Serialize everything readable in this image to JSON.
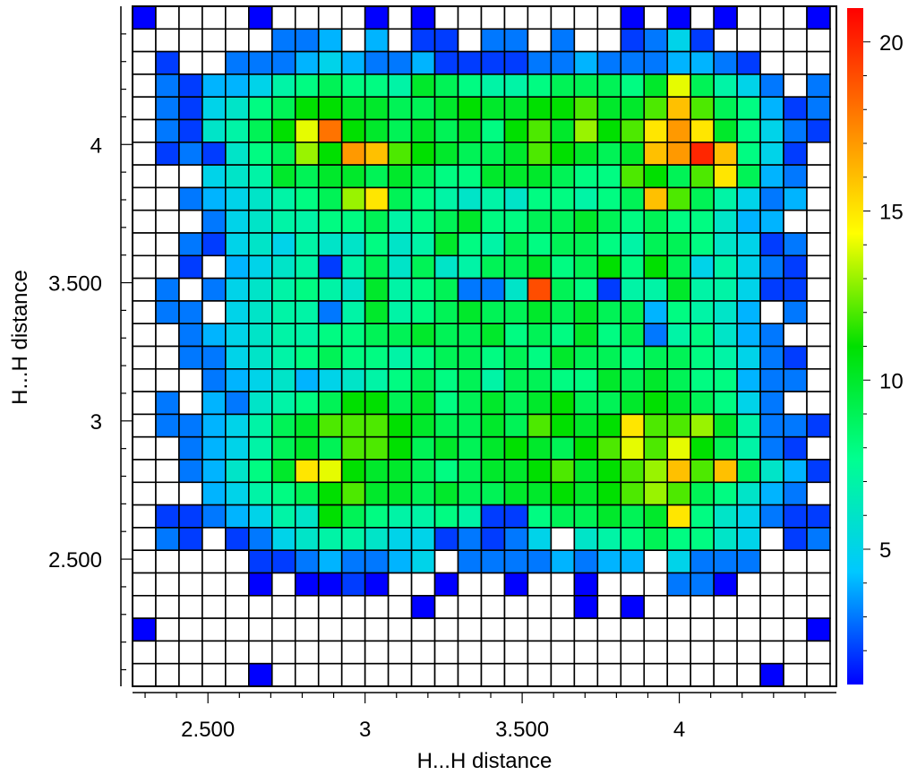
{
  "chart_data": {
    "type": "heatmap",
    "title": "",
    "xlabel": "H...H distance",
    "ylabel": "H...H distance",
    "x_ticks": [
      {
        "value": 2.5,
        "label": "2.500"
      },
      {
        "value": 3.0,
        "label": "3"
      },
      {
        "value": 3.5,
        "label": "3.500"
      },
      {
        "value": 4.0,
        "label": "4"
      }
    ],
    "y_ticks": [
      {
        "value": 2.5,
        "label": "2.500"
      },
      {
        "value": 3.0,
        "label": "3"
      },
      {
        "value": 3.5,
        "label": "3.500"
      },
      {
        "value": 4.0,
        "label": "4"
      }
    ],
    "xlim": [
      2.26,
      4.5
    ],
    "ylim": [
      2.04,
      4.5
    ],
    "colorbar": {
      "min": 1,
      "max": 21,
      "ticks": [
        {
          "value": 5,
          "label": "5"
        },
        {
          "value": 10,
          "label": "10"
        },
        {
          "value": 15,
          "label": "15"
        },
        {
          "value": 20,
          "label": "20"
        }
      ],
      "colormap": [
        "#0000ff",
        "#00c8ff",
        "#00ff90",
        "#00e000",
        "#ffff00",
        "#ff8000",
        "#ff0000"
      ]
    },
    "empty_color": "#ffffff",
    "x_bins": {
      "start": 2.26,
      "width": 0.074,
      "count": 30
    },
    "y_bins": {
      "start": 2.04,
      "width": 0.082,
      "count": 30
    },
    "grid_rows_top_to_bottom": [
      [
        1,
        0,
        0,
        0,
        0,
        1,
        0,
        0,
        0,
        0,
        1,
        0,
        1,
        0,
        0,
        0,
        0,
        0,
        0,
        0,
        0,
        1,
        0,
        1,
        0,
        1,
        0,
        0,
        0,
        1
      ],
      [
        0,
        0,
        0,
        0,
        0,
        0,
        3,
        3,
        4,
        0,
        4,
        0,
        2,
        2,
        0,
        3,
        3,
        0,
        3,
        0,
        0,
        2,
        3,
        5,
        2,
        0,
        0,
        0,
        0,
        0
      ],
      [
        0,
        2,
        0,
        0,
        3,
        3,
        3,
        4,
        5,
        4,
        3,
        3,
        4,
        2,
        2,
        2,
        2,
        3,
        3,
        4,
        3,
        3,
        3,
        4,
        4,
        3,
        2,
        0,
        0,
        0
      ],
      [
        0,
        3,
        2,
        4,
        4,
        5,
        7,
        8,
        9,
        8,
        8,
        7,
        10,
        9,
        8,
        7,
        7,
        8,
        9,
        9,
        9,
        8,
        10,
        14,
        9,
        7,
        5,
        3,
        0,
        3
      ],
      [
        0,
        3,
        2,
        5,
        6,
        8,
        9,
        11,
        11,
        10,
        10,
        9,
        9,
        10,
        11,
        10,
        10,
        11,
        11,
        12,
        10,
        10,
        12,
        16,
        12,
        9,
        8,
        4,
        2,
        3
      ],
      [
        0,
        3,
        2,
        6,
        7,
        9,
        11,
        14,
        18,
        11,
        10,
        9,
        10,
        9,
        10,
        8,
        11,
        12,
        10,
        13,
        11,
        12,
        15,
        17,
        15,
        10,
        8,
        5,
        3,
        2
      ],
      [
        0,
        2,
        3,
        2,
        6,
        8,
        9,
        13,
        11,
        17,
        16,
        12,
        11,
        10,
        9,
        9,
        10,
        12,
        11,
        10,
        9,
        10,
        16,
        17,
        20,
        16,
        8,
        5,
        2,
        0
      ],
      [
        0,
        0,
        0,
        5,
        6,
        7,
        10,
        9,
        10,
        10,
        9,
        10,
        9,
        8,
        8,
        10,
        10,
        10,
        9,
        8,
        8,
        12,
        11,
        9,
        12,
        15,
        9,
        4,
        3,
        0
      ],
      [
        0,
        0,
        3,
        4,
        5,
        6,
        7,
        8,
        9,
        13,
        15,
        9,
        8,
        7,
        6,
        7,
        6,
        8,
        8,
        7,
        8,
        9,
        16,
        12,
        9,
        7,
        5,
        3,
        4,
        0
      ],
      [
        0,
        0,
        0,
        3,
        5,
        6,
        7,
        7,
        8,
        8,
        9,
        7,
        8,
        9,
        10,
        8,
        8,
        9,
        9,
        10,
        9,
        8,
        9,
        8,
        8,
        6,
        4,
        4,
        0,
        0
      ],
      [
        0,
        0,
        3,
        2,
        5,
        6,
        5,
        7,
        6,
        6,
        8,
        6,
        7,
        10,
        8,
        7,
        9,
        8,
        9,
        9,
        8,
        7,
        9,
        9,
        8,
        6,
        5,
        2,
        3,
        0
      ],
      [
        0,
        0,
        2,
        0,
        4,
        5,
        6,
        7,
        2,
        7,
        9,
        6,
        9,
        6,
        7,
        9,
        9,
        10,
        8,
        9,
        11,
        8,
        11,
        9,
        5,
        7,
        5,
        3,
        2,
        0
      ],
      [
        0,
        3,
        0,
        3,
        5,
        6,
        7,
        8,
        7,
        6,
        10,
        7,
        8,
        9,
        3,
        3,
        6,
        19,
        9,
        8,
        2,
        7,
        7,
        10,
        7,
        7,
        5,
        2,
        2,
        0
      ],
      [
        0,
        3,
        3,
        0,
        5,
        6,
        7,
        7,
        3,
        7,
        10,
        7,
        8,
        9,
        10,
        9,
        9,
        10,
        9,
        10,
        9,
        9,
        4,
        8,
        7,
        6,
        4,
        0,
        3,
        0
      ],
      [
        0,
        0,
        3,
        4,
        5,
        6,
        7,
        7,
        8,
        8,
        9,
        9,
        10,
        9,
        9,
        10,
        8,
        9,
        8,
        10,
        8,
        9,
        3,
        7,
        8,
        6,
        4,
        3,
        0,
        0
      ],
      [
        0,
        0,
        3,
        3,
        5,
        6,
        7,
        8,
        9,
        8,
        8,
        7,
        8,
        9,
        9,
        8,
        9,
        8,
        10,
        9,
        9,
        8,
        9,
        9,
        8,
        7,
        5,
        3,
        2,
        0
      ],
      [
        0,
        0,
        0,
        3,
        4,
        5,
        6,
        4,
        5,
        6,
        7,
        8,
        9,
        8,
        9,
        7,
        9,
        9,
        8,
        8,
        10,
        9,
        10,
        9,
        8,
        8,
        4,
        3,
        3,
        0
      ],
      [
        0,
        3,
        0,
        4,
        3,
        6,
        7,
        8,
        9,
        11,
        11,
        9,
        10,
        8,
        9,
        10,
        9,
        10,
        11,
        9,
        9,
        10,
        11,
        10,
        9,
        8,
        5,
        3,
        0,
        0
      ],
      [
        0,
        3,
        3,
        4,
        5,
        7,
        9,
        10,
        12,
        12,
        12,
        11,
        10,
        9,
        9,
        10,
        9,
        12,
        11,
        10,
        11,
        15,
        12,
        12,
        13,
        10,
        7,
        3,
        3,
        2
      ],
      [
        0,
        0,
        3,
        4,
        5,
        7,
        9,
        10,
        9,
        12,
        12,
        11,
        9,
        10,
        9,
        10,
        11,
        10,
        9,
        11,
        12,
        14,
        12,
        14,
        11,
        9,
        7,
        3,
        2,
        0
      ],
      [
        0,
        0,
        3,
        4,
        6,
        8,
        10,
        15,
        14,
        11,
        10,
        10,
        9,
        8,
        9,
        10,
        10,
        11,
        12,
        10,
        11,
        12,
        13,
        16,
        12,
        16,
        9,
        6,
        4,
        2
      ],
      [
        0,
        0,
        0,
        4,
        5,
        7,
        8,
        9,
        11,
        12,
        10,
        10,
        9,
        10,
        9,
        9,
        10,
        10,
        11,
        10,
        11,
        12,
        13,
        12,
        9,
        8,
        6,
        4,
        3,
        0
      ],
      [
        0,
        2,
        2,
        3,
        4,
        5,
        7,
        6,
        11,
        9,
        8,
        7,
        7,
        8,
        7,
        2,
        2,
        8,
        9,
        9,
        10,
        9,
        10,
        15,
        8,
        6,
        5,
        3,
        2,
        2
      ],
      [
        0,
        3,
        2,
        0,
        2,
        3,
        5,
        6,
        7,
        7,
        6,
        5,
        5,
        2,
        3,
        2,
        3,
        5,
        0,
        6,
        7,
        8,
        9,
        8,
        8,
        6,
        5,
        0,
        2,
        3
      ],
      [
        0,
        0,
        0,
        0,
        0,
        2,
        2,
        3,
        4,
        3,
        3,
        4,
        5,
        0,
        3,
        3,
        3,
        3,
        4,
        3,
        4,
        4,
        0,
        5,
        3,
        3,
        3,
        0,
        0,
        0
      ],
      [
        0,
        0,
        0,
        0,
        0,
        1,
        0,
        1,
        1,
        2,
        1,
        0,
        0,
        1,
        0,
        0,
        1,
        0,
        0,
        1,
        0,
        0,
        0,
        3,
        3,
        1,
        0,
        0,
        0,
        0
      ],
      [
        0,
        0,
        0,
        0,
        0,
        0,
        0,
        0,
        0,
        0,
        0,
        0,
        1,
        0,
        0,
        0,
        0,
        0,
        0,
        1,
        0,
        1,
        0,
        0,
        0,
        0,
        0,
        0,
        0,
        0
      ],
      [
        1,
        0,
        0,
        0,
        0,
        0,
        0,
        0,
        0,
        0,
        0,
        0,
        0,
        0,
        0,
        0,
        0,
        0,
        0,
        0,
        0,
        0,
        0,
        0,
        0,
        0,
        0,
        0,
        0,
        1
      ],
      [
        0,
        0,
        0,
        0,
        0,
        0,
        0,
        0,
        0,
        0,
        0,
        0,
        0,
        0,
        0,
        0,
        0,
        0,
        0,
        0,
        0,
        0,
        0,
        0,
        0,
        0,
        0,
        0,
        0,
        0
      ],
      [
        0,
        0,
        0,
        0,
        0,
        1,
        0,
        0,
        0,
        0,
        0,
        0,
        0,
        0,
        0,
        0,
        0,
        0,
        0,
        0,
        0,
        0,
        0,
        0,
        0,
        0,
        0,
        1,
        0,
        0
      ]
    ]
  }
}
